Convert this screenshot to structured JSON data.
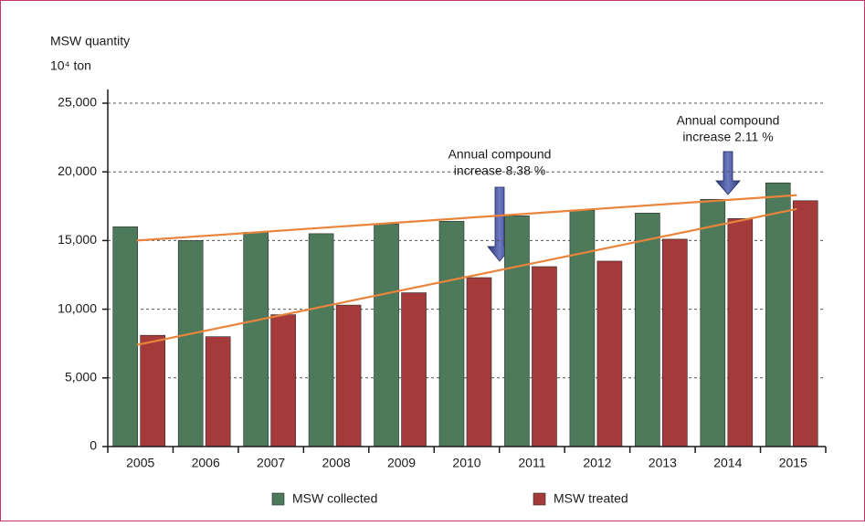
{
  "chart_data": {
    "type": "bar",
    "y_label": "MSW quantity",
    "y_unit": "10⁴ ton",
    "categories": [
      "2005",
      "2006",
      "2007",
      "2008",
      "2009",
      "2010",
      "2011",
      "2012",
      "2013",
      "2014",
      "2015"
    ],
    "series": [
      {
        "name": "MSW collected",
        "color": "#4e7a5c",
        "values": [
          16000,
          15000,
          15600,
          15500,
          16200,
          16400,
          16800,
          17200,
          17000,
          18000,
          19200
        ]
      },
      {
        "name": "MSW treated",
        "color": "#a53a3a",
        "values": [
          8100,
          8000,
          9600,
          10300,
          11200,
          12300,
          13100,
          13500,
          15100,
          16600,
          17900
        ]
      }
    ],
    "trend_lines": [
      {
        "color": "#e8843c",
        "values": [
          15000,
          18300
        ]
      },
      {
        "color": "#e8843c",
        "values": [
          7400,
          17300
        ]
      }
    ],
    "annotations": [
      {
        "lines": [
          "Annual compound",
          "increase 8.38 %"
        ]
      },
      {
        "lines": [
          "Annual compound",
          "increase 2.11 %"
        ]
      }
    ],
    "ylim": [
      0,
      25000
    ],
    "yticks": [
      0,
      {
        "value": 5000,
        "label": "5,000"
      },
      {
        "value": 10000,
        "label": "10,000"
      },
      {
        "value": 15000,
        "label": "15,000"
      },
      {
        "value": 20000,
        "label": "20,000"
      },
      {
        "value": 25000,
        "label": "25,000"
      }
    ],
    "grid": true
  }
}
